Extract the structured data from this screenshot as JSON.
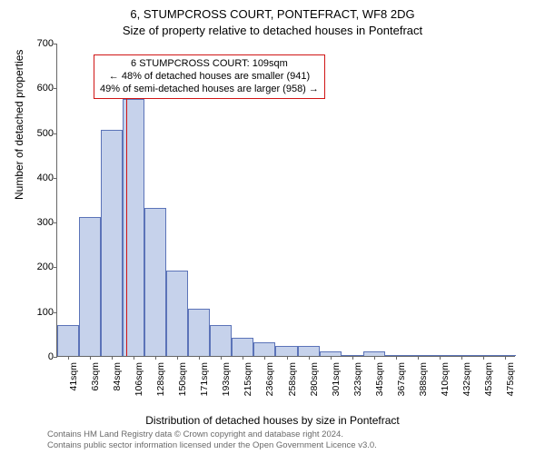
{
  "title_main": "6, STUMPCROSS COURT, PONTEFRACT, WF8 2DG",
  "title_sub": "Size of property relative to detached houses in Pontefract",
  "ylabel": "Number of detached properties",
  "xlabel": "Distribution of detached houses by size in Pontefract",
  "chart": {
    "type": "histogram",
    "x_categories": [
      "41sqm",
      "63sqm",
      "84sqm",
      "106sqm",
      "128sqm",
      "150sqm",
      "171sqm",
      "193sqm",
      "215sqm",
      "236sqm",
      "258sqm",
      "280sqm",
      "301sqm",
      "323sqm",
      "345sqm",
      "367sqm",
      "388sqm",
      "410sqm",
      "432sqm",
      "453sqm",
      "475sqm"
    ],
    "values": [
      70,
      310,
      505,
      575,
      330,
      190,
      105,
      70,
      40,
      30,
      22,
      22,
      10,
      0,
      10,
      0,
      0,
      0,
      0,
      0,
      0
    ],
    "bar_fill": "#c6d2eb",
    "bar_stroke": "#5b73b8",
    "ylim": [
      0,
      700
    ],
    "ytick_step": 100,
    "yticks": [
      0,
      100,
      200,
      300,
      400,
      500,
      600,
      700
    ],
    "background": "#ffffff",
    "axis_color": "#666666",
    "marker_position_index": 3.15,
    "marker_color": "#d01515",
    "marker_height": 575
  },
  "annotation": {
    "line1": "6 STUMPCROSS COURT: 109sqm",
    "line2": "← 48% of detached houses are smaller (941)",
    "line3": "49% of semi-detached houses are larger (958) →",
    "border_color": "#d01515"
  },
  "footer": {
    "line1": "Contains HM Land Registry data © Crown copyright and database right 2024.",
    "line2": "Contains public sector information licensed under the Open Government Licence v3.0."
  }
}
